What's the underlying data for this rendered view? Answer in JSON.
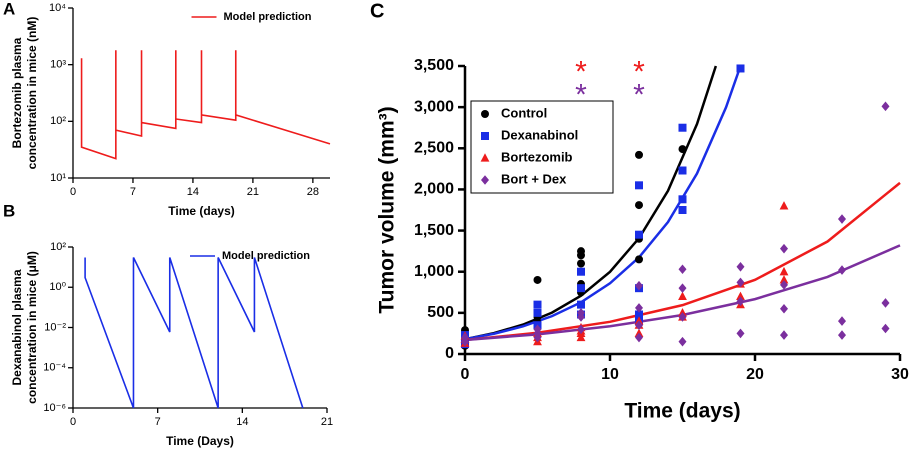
{
  "chart_data": [
    {
      "type": "line",
      "panel": "A",
      "xlabel": "Time (days)",
      "ylabel": [
        "Bortezomib plasma",
        "concentration in mice (nM)"
      ],
      "log_y": true,
      "legend": "upper center",
      "xlim": [
        0,
        30
      ],
      "xticks": [
        0,
        7,
        14,
        21,
        28
      ],
      "ylim": [
        10,
        10000
      ],
      "yticks": [
        {
          "value": 10,
          "label": "10¹"
        },
        {
          "value": 100,
          "label": "10²"
        },
        {
          "value": 1000,
          "label": "10³"
        },
        {
          "value": 10000,
          "label": "10⁴"
        }
      ],
      "series": [
        {
          "name": "Model prediction",
          "color": "#ee1c1c",
          "x": [
            1,
            1,
            5,
            5,
            5,
            8,
            8,
            8,
            12,
            12,
            12,
            15,
            15,
            15,
            19,
            19,
            19,
            30
          ],
          "values": [
            1300,
            35,
            22,
            1800,
            70,
            55,
            1800,
            95,
            75,
            1800,
            110,
            95,
            1800,
            130,
            105,
            1800,
            130,
            40
          ]
        }
      ]
    },
    {
      "type": "line",
      "panel": "B",
      "xlabel": "Time (Days)",
      "ylabel": [
        "Dexanabinol plasma",
        "concentration in mice (μM)"
      ],
      "log_y": true,
      "legend": "upper center",
      "xlim": [
        0,
        21
      ],
      "xticks": [
        0,
        7,
        14,
        21
      ],
      "ylim": [
        1e-06,
        100
      ],
      "yticks": [
        {
          "value": 100,
          "label": "10²"
        },
        {
          "value": 1,
          "label": "10⁰"
        },
        {
          "value": 0.01,
          "label": "10⁻²"
        },
        {
          "value": 0.0001,
          "label": "10⁻⁴"
        },
        {
          "value": 1e-06,
          "label": "10⁻⁶"
        }
      ],
      "series": [
        {
          "name": "Model prediction",
          "color": "#1a2ee6",
          "x": [
            1,
            1,
            5,
            5,
            8,
            8,
            12,
            12,
            15,
            15,
            19
          ],
          "values": [
            30,
            3,
            1e-06,
            30,
            0.006,
            30,
            1e-06,
            30,
            0.006,
            30,
            1e-06
          ]
        }
      ]
    },
    {
      "type": "scatter",
      "panel": "C",
      "xlabel": "Time (days)",
      "ylabel": "Tumor volume (mm³)",
      "legend": "upper left",
      "xlim": [
        0,
        30
      ],
      "xticks": [
        0,
        10,
        20,
        30
      ],
      "ylim": [
        0,
        3500
      ],
      "yticks": [
        0,
        500,
        {
          "value": 1000,
          "label": "1,000"
        },
        {
          "value": 1500,
          "label": "1,500"
        },
        {
          "value": 2000,
          "label": "2,000"
        },
        {
          "value": 2500,
          "label": "2,500"
        },
        {
          "value": 3000,
          "label": "3,000"
        },
        {
          "value": 3500,
          "label": "3,500"
        }
      ],
      "series": [
        {
          "name": "Control",
          "color": "#000000",
          "marker": "circle",
          "x": [
            0,
            0,
            0,
            0,
            0,
            5,
            5,
            5,
            5,
            8,
            8,
            8,
            8,
            8,
            12,
            12,
            12,
            12,
            15
          ],
          "values": [
            100,
            150,
            200,
            250,
            290,
            900,
            450,
            380,
            330,
            1250,
            1200,
            1100,
            850,
            750,
            2420,
            1810,
            1400,
            1150,
            2490
          ]
        },
        {
          "name": "Dexanabinol",
          "color": "#1a2ee6",
          "marker": "square",
          "x": [
            0,
            0,
            0,
            5,
            5,
            5,
            8,
            8,
            8,
            8,
            12,
            12,
            12,
            12,
            12,
            15,
            15,
            15,
            15,
            19
          ],
          "values": [
            120,
            180,
            230,
            600,
            500,
            350,
            1000,
            800,
            600,
            480,
            2050,
            1450,
            800,
            480,
            400,
            2750,
            2230,
            1880,
            1750,
            3470
          ]
        },
        {
          "name": "Bortezomib",
          "color": "#ee1c1c",
          "marker": "triangle",
          "x": [
            0,
            0,
            0,
            5,
            5,
            5,
            8,
            8,
            8,
            8,
            12,
            12,
            12,
            15,
            15,
            15,
            19,
            19,
            19,
            22,
            22,
            22
          ],
          "values": [
            130,
            180,
            220,
            250,
            200,
            150,
            320,
            280,
            250,
            200,
            400,
            350,
            250,
            700,
            500,
            450,
            850,
            700,
            600,
            1800,
            1000,
            900
          ]
        },
        {
          "name": "Bort + Dex",
          "color": "#7b2f9e",
          "marker": "diamond",
          "x": [
            0,
            0,
            5,
            5,
            5,
            8,
            8,
            8,
            12,
            12,
            12,
            12,
            15,
            15,
            15,
            15,
            19,
            19,
            19,
            19,
            22,
            22,
            22,
            22,
            26,
            26,
            26,
            26,
            29,
            29,
            29
          ],
          "values": [
            150,
            200,
            300,
            250,
            200,
            500,
            450,
            300,
            830,
            560,
            350,
            200,
            1030,
            800,
            450,
            150,
            1060,
            870,
            640,
            250,
            1280,
            840,
            550,
            230,
            1640,
            1020,
            400,
            230,
            3010,
            620,
            310
          ]
        }
      ],
      "fits": [
        {
          "color": "#000000",
          "x": [
            0,
            2,
            4,
            6,
            8,
            10,
            12,
            14,
            16,
            17.3
          ],
          "values": [
            180,
            254,
            357,
            503,
            709,
            999,
            1408,
            1984,
            2795,
            3500
          ]
        },
        {
          "color": "#1a2ee6",
          "x": [
            0,
            2,
            4,
            6,
            8,
            10,
            12,
            14,
            16,
            18,
            19
          ],
          "values": [
            180,
            246,
            336,
            460,
            628,
            859,
            1174,
            1604,
            2193,
            2997,
            3500
          ]
        },
        {
          "color": "#ee1c1c",
          "x": [
            0,
            5,
            10,
            15,
            20,
            25,
            30
          ],
          "values": [
            170,
            258,
            391,
            594,
            901,
            1367,
            2080
          ]
        },
        {
          "color": "#7b2f9e",
          "x": [
            0,
            5,
            10,
            15,
            20,
            25,
            30
          ],
          "values": [
            170,
            239,
            337,
            474,
            667,
            937,
            1320
          ]
        }
      ],
      "annotations": [
        {
          "text": "*",
          "x": 8,
          "y": 3480,
          "color": "#ee1c1c"
        },
        {
          "text": "*",
          "x": 12,
          "y": 3480,
          "color": "#ee1c1c"
        },
        {
          "text": "*",
          "x": 8,
          "y": 3200,
          "color": "#7b2f9e"
        },
        {
          "text": "*",
          "x": 12,
          "y": 3200,
          "color": "#7b2f9e"
        }
      ]
    }
  ]
}
